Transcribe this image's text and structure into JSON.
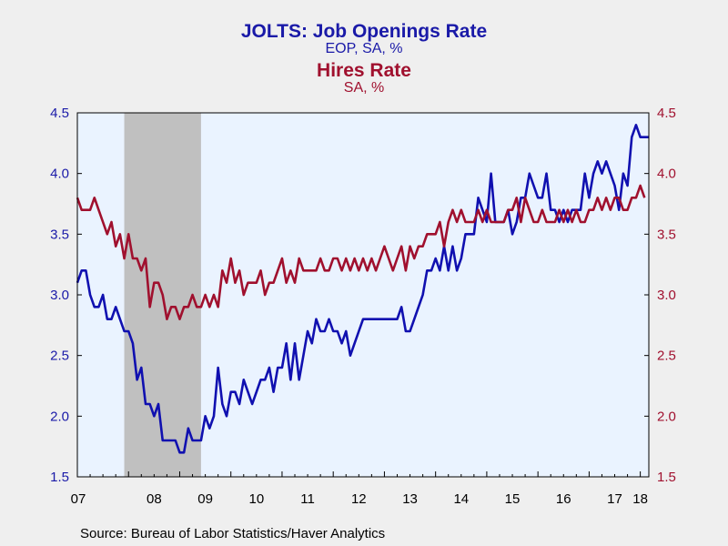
{
  "chart_data": {
    "type": "line",
    "title_lines": [
      {
        "text": "JOLTS: Job Openings Rate",
        "series": "job_openings"
      },
      {
        "text": "EOP, SA, %",
        "series": "job_openings"
      },
      {
        "text": "Hires Rate",
        "series": "hires"
      },
      {
        "text": "SA, %",
        "series": "hires"
      }
    ],
    "source": "Source:  Bureau of Labor Statistics/Haver Analytics",
    "x_axis": {
      "ticks": [
        "07",
        "08",
        "09",
        "10",
        "11",
        "12",
        "13",
        "14",
        "15",
        "16",
        "17",
        "18"
      ],
      "start": "2007-01",
      "end": "2018-03",
      "frequency": "monthly"
    },
    "y_left": {
      "min": 1.5,
      "max": 4.5,
      "ticks": [
        "1.5",
        "2.0",
        "2.5",
        "3.0",
        "3.5",
        "4.0",
        "4.5"
      ]
    },
    "y_right": {
      "min": 1.5,
      "max": 4.5,
      "ticks": [
        "1.5",
        "2.0",
        "2.5",
        "3.0",
        "3.5",
        "4.0",
        "4.5"
      ]
    },
    "recession": {
      "start": "2007-12",
      "end": "2009-06",
      "color": "#c0c0c0"
    },
    "plot_background": "#eaf3ff",
    "grid": false,
    "series": [
      {
        "id": "job_openings",
        "color": "#1010b0",
        "axis": "left",
        "start": "2007-01",
        "values": [
          3.1,
          3.2,
          3.2,
          3.0,
          2.9,
          2.9,
          3.0,
          2.8,
          2.8,
          2.9,
          2.8,
          2.7,
          2.7,
          2.6,
          2.3,
          2.4,
          2.1,
          2.1,
          2.0,
          2.1,
          1.8,
          1.8,
          1.8,
          1.8,
          1.7,
          1.7,
          1.9,
          1.8,
          1.8,
          1.8,
          2.0,
          1.9,
          2.0,
          2.4,
          2.1,
          2.0,
          2.2,
          2.2,
          2.1,
          2.3,
          2.2,
          2.1,
          2.2,
          2.3,
          2.3,
          2.4,
          2.2,
          2.4,
          2.4,
          2.6,
          2.3,
          2.6,
          2.3,
          2.5,
          2.7,
          2.6,
          2.8,
          2.7,
          2.7,
          2.8,
          2.7,
          2.7,
          2.6,
          2.7,
          2.5,
          2.6,
          2.7,
          2.8,
          2.8,
          2.8,
          2.8,
          2.8,
          2.8,
          2.8,
          2.8,
          2.8,
          2.9,
          2.7,
          2.7,
          2.8,
          2.9,
          3.0,
          3.2,
          3.2,
          3.3,
          3.2,
          3.4,
          3.2,
          3.4,
          3.2,
          3.3,
          3.5,
          3.5,
          3.5,
          3.8,
          3.7,
          3.6,
          4.0,
          3.6,
          3.6,
          3.6,
          3.7,
          3.5,
          3.6,
          3.8,
          3.8,
          4.0,
          3.9,
          3.8,
          3.8,
          4.0,
          3.7,
          3.7,
          3.6,
          3.7,
          3.6,
          3.7,
          3.7,
          3.7,
          4.0,
          3.8,
          4.0,
          4.1,
          4.0,
          4.1,
          4.0,
          3.9,
          3.7,
          4.0,
          3.9,
          4.3,
          4.4,
          4.3,
          4.3,
          4.3
        ]
      },
      {
        "id": "hires",
        "color": "#a0102e",
        "axis": "right",
        "start": "2007-01",
        "values": [
          3.8,
          3.7,
          3.7,
          3.7,
          3.8,
          3.7,
          3.6,
          3.5,
          3.6,
          3.4,
          3.5,
          3.3,
          3.5,
          3.3,
          3.3,
          3.2,
          3.3,
          2.9,
          3.1,
          3.1,
          3.0,
          2.8,
          2.9,
          2.9,
          2.8,
          2.9,
          2.9,
          3.0,
          2.9,
          2.9,
          3.0,
          2.9,
          3.0,
          2.9,
          3.2,
          3.1,
          3.3,
          3.1,
          3.2,
          3.0,
          3.1,
          3.1,
          3.1,
          3.2,
          3.0,
          3.1,
          3.1,
          3.2,
          3.3,
          3.1,
          3.2,
          3.1,
          3.3,
          3.2,
          3.2,
          3.2,
          3.2,
          3.3,
          3.2,
          3.2,
          3.3,
          3.3,
          3.2,
          3.3,
          3.2,
          3.3,
          3.2,
          3.3,
          3.2,
          3.3,
          3.2,
          3.3,
          3.4,
          3.3,
          3.2,
          3.3,
          3.4,
          3.2,
          3.4,
          3.3,
          3.4,
          3.4,
          3.5,
          3.5,
          3.5,
          3.6,
          3.4,
          3.6,
          3.7,
          3.6,
          3.7,
          3.6,
          3.6,
          3.6,
          3.7,
          3.6,
          3.7,
          3.6,
          3.6,
          3.6,
          3.6,
          3.7,
          3.7,
          3.8,
          3.6,
          3.8,
          3.7,
          3.6,
          3.6,
          3.7,
          3.6,
          3.6,
          3.6,
          3.7,
          3.6,
          3.7,
          3.6,
          3.7,
          3.6,
          3.6,
          3.7,
          3.7,
          3.8,
          3.7,
          3.8,
          3.7,
          3.8,
          3.8,
          3.7,
          3.7,
          3.8,
          3.8,
          3.9,
          3.8
        ]
      }
    ]
  }
}
